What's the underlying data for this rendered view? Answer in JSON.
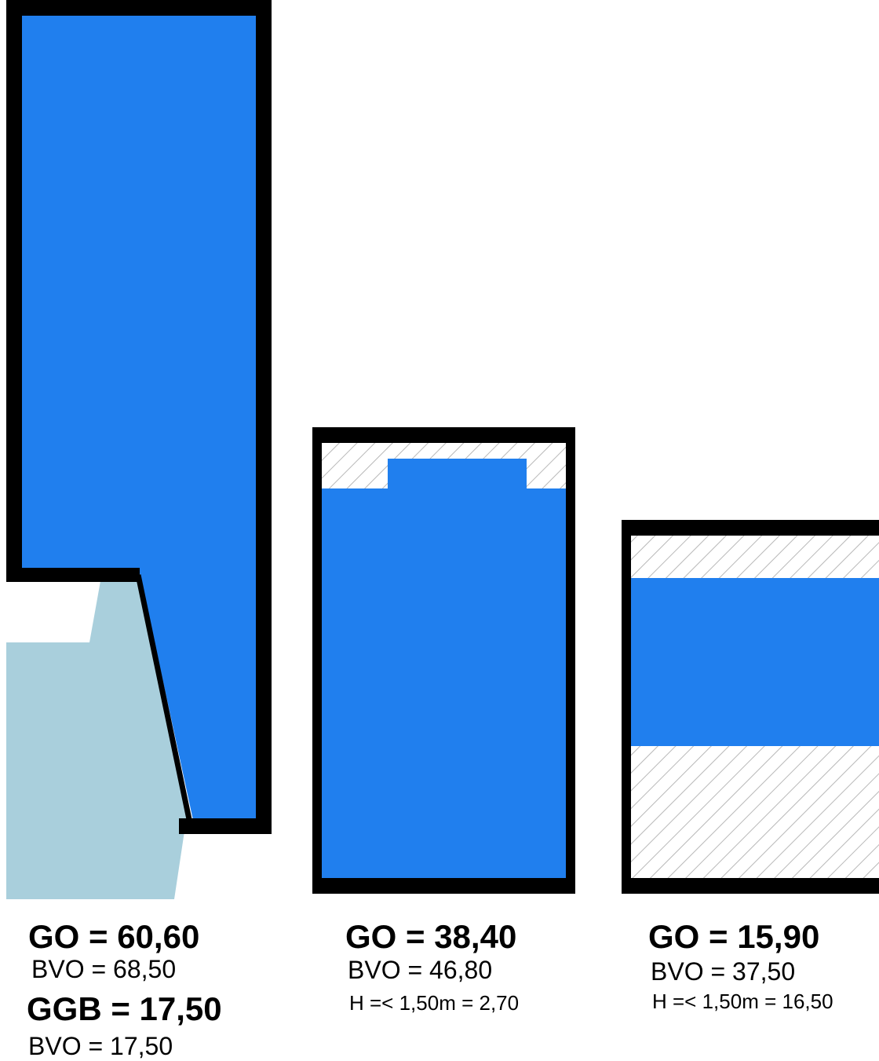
{
  "colors": {
    "go_fill": "#207fee",
    "ggb_fill": "#a9cfdc",
    "wall": "#000000",
    "hatch": "#b8b8b8",
    "background": "#ffffff"
  },
  "units": [
    {
      "go": "GO = 60,60",
      "bvo": "BVO = 68,50",
      "ggb": "GGB = 17,50",
      "ggb_bvo": "BVO = 17,50"
    },
    {
      "go": "GO = 38,40",
      "bvo": "BVO = 46,80",
      "h_low": "H =< 1,50m = 2,70"
    },
    {
      "go": "GO = 15,90",
      "bvo": "BVO = 37,50",
      "h_low": "H =< 1,50m = 16,50"
    }
  ]
}
